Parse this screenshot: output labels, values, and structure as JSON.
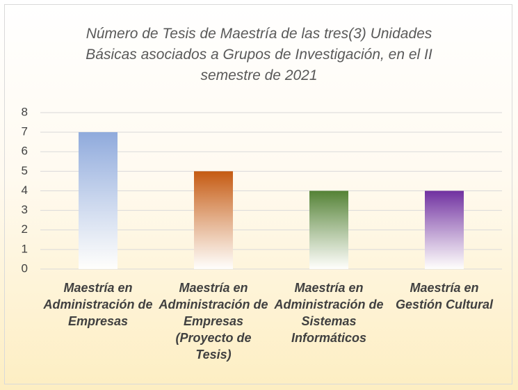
{
  "chart_data": {
    "type": "bar",
    "title": "Número de Tesis de Maestría de las tres(3) Unidades Básicas asociados a Grupos de Investigación, en el II semestre de 2021",
    "categories": [
      "Maestría en Administración de Empresas",
      "Maestría en Administración de Empresas (Proyecto de Tesis)",
      "Maestría en Administración de Sistemas Informáticos",
      "Maestría en Gestión Cultural"
    ],
    "values": [
      7,
      5,
      4,
      4
    ],
    "colors": [
      "#8faadc",
      "#c55a11",
      "#548235",
      "#7030a0"
    ],
    "ylim": [
      0,
      8
    ],
    "yticks": [
      0,
      1,
      2,
      3,
      4,
      5,
      6,
      7,
      8
    ],
    "grid": true
  }
}
